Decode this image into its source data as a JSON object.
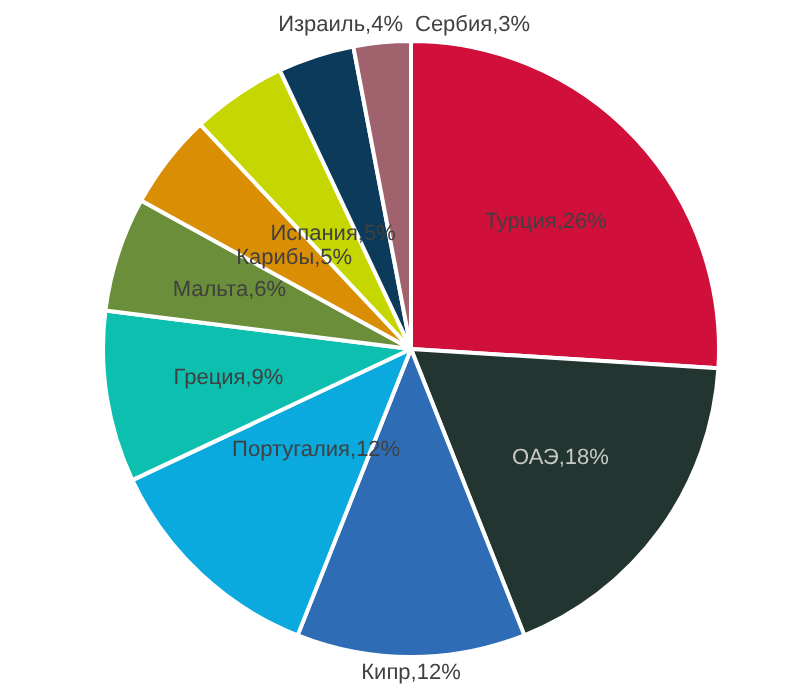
{
  "chart_data": {
    "type": "pie",
    "categories": [
      "Турция",
      "ОАЭ",
      "Кипр",
      "Португалия",
      "Греция",
      "Мальта",
      "Карибы",
      "Испания",
      "Израиль",
      "Сербия"
    ],
    "values": [
      26,
      18,
      12,
      12,
      9,
      6,
      5,
      5,
      4,
      3
    ],
    "value_labels": [
      "26%",
      "18%",
      "12%",
      "12%",
      "9%",
      "6%",
      "5%",
      "5%",
      "4%",
      "3%"
    ],
    "colors": [
      "#d0103a",
      "#223530",
      "#2e6db5",
      "#0aa9de",
      "#0cbfae",
      "#6b8e3a",
      "#d98e04",
      "#c5d600",
      "#0b3a5a",
      "#a0636e"
    ]
  }
}
